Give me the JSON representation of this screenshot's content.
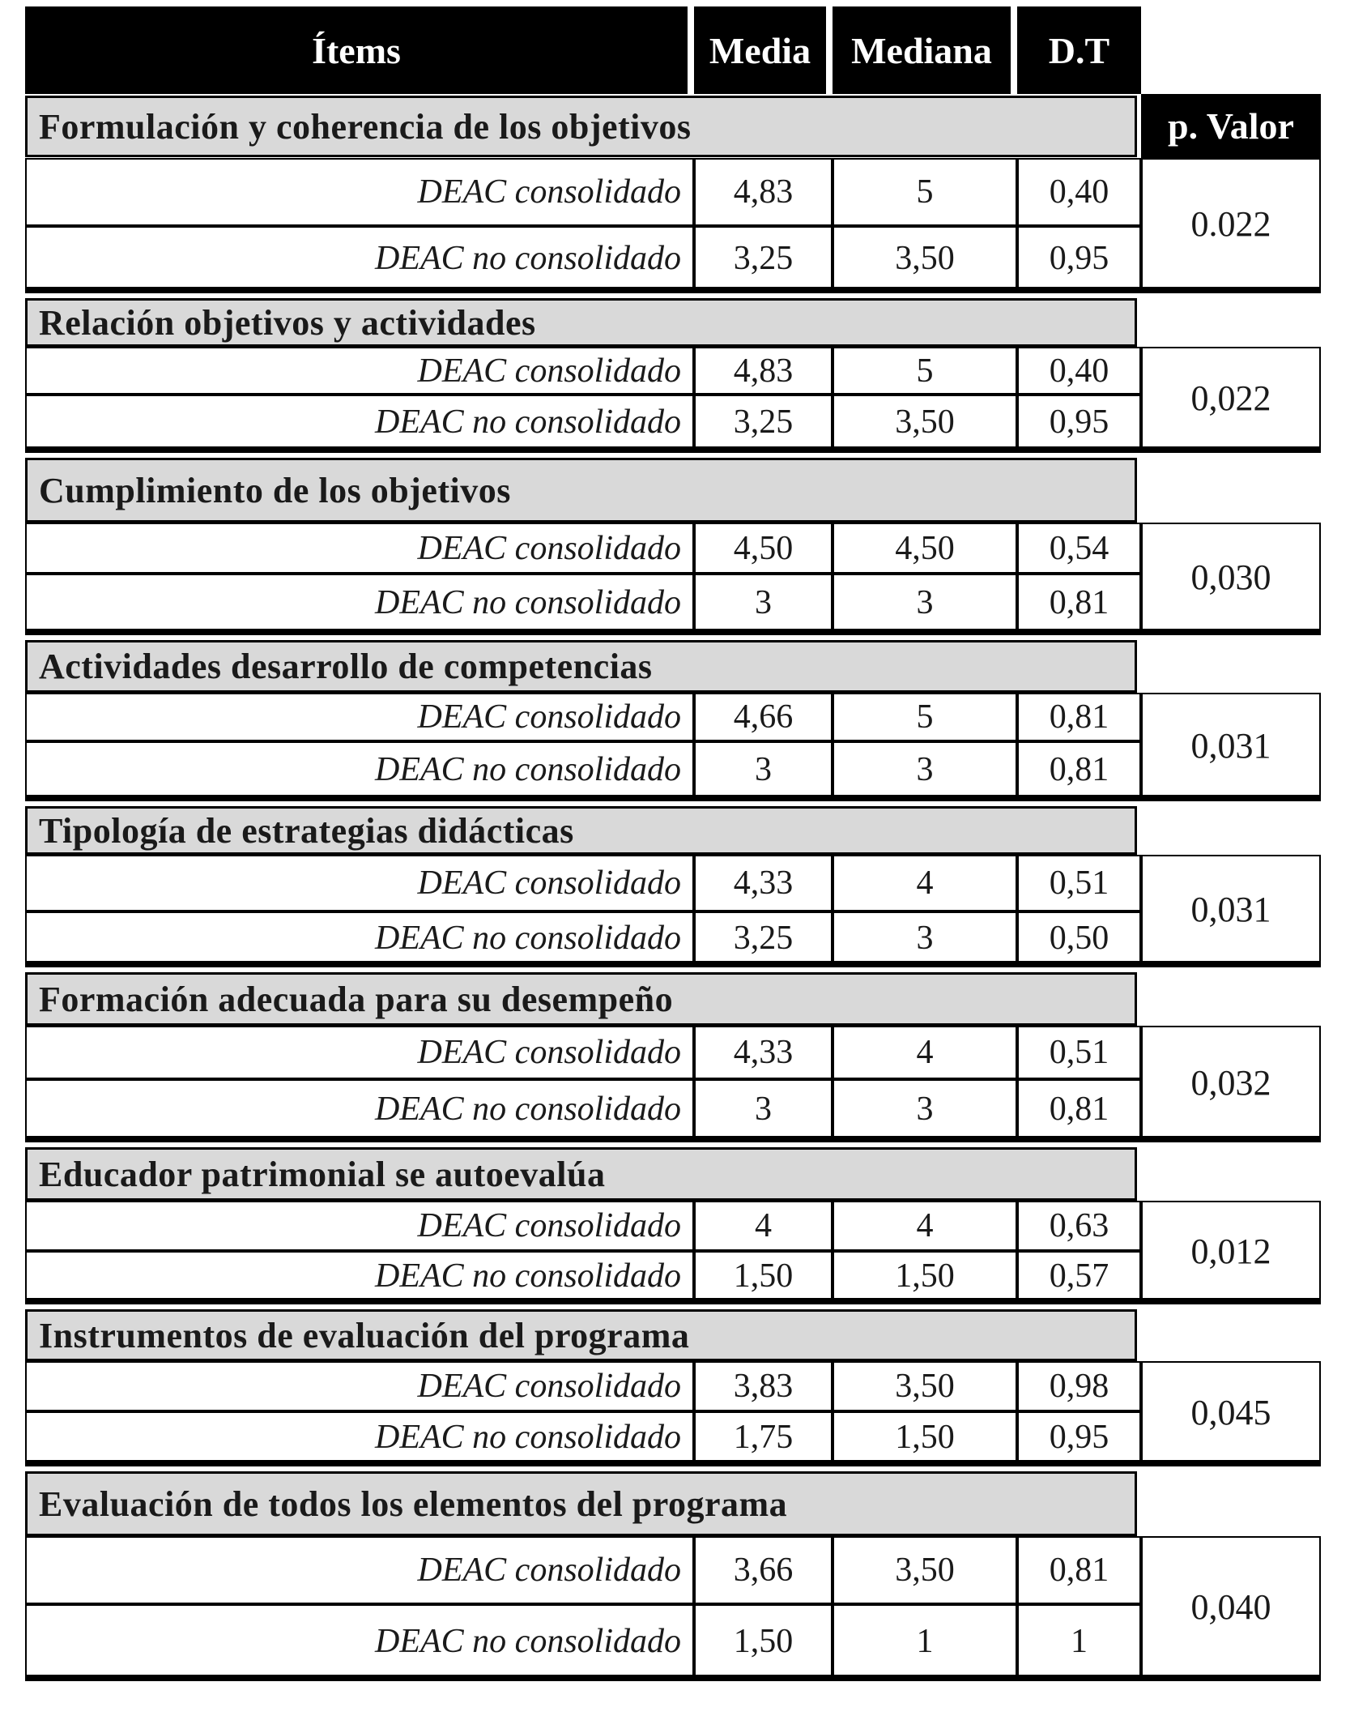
{
  "table": {
    "headers": {
      "items": "Ítems",
      "media": "Media",
      "mediana": "Mediana",
      "dt": "D.T",
      "pvalor": "p. Valor"
    },
    "rows": [
      {
        "item": "Formulación y coherencia de los objetivos",
        "groups": [
          {
            "label": "DEAC consolidado",
            "media": "4,83",
            "mediana": "5",
            "dt": "0,40"
          },
          {
            "label": "DEAC no consolidado",
            "media": "3,25",
            "mediana": "3,50",
            "dt": "0,95"
          }
        ],
        "p": "0.022"
      },
      {
        "item": "Relación objetivos y actividades",
        "groups": [
          {
            "label": "DEAC consolidado",
            "media": "4,83",
            "mediana": "5",
            "dt": "0,40"
          },
          {
            "label": "DEAC no consolidado",
            "media": "3,25",
            "mediana": "3,50",
            "dt": "0,95"
          }
        ],
        "p": "0,022"
      },
      {
        "item": "Cumplimiento de los objetivos",
        "groups": [
          {
            "label": "DEAC consolidado",
            "media": "4,50",
            "mediana": "4,50",
            "dt": "0,54"
          },
          {
            "label": "DEAC no consolidado",
            "media": "3",
            "mediana": "3",
            "dt": "0,81"
          }
        ],
        "p": "0,030"
      },
      {
        "item": "Actividades desarrollo de competencias",
        "groups": [
          {
            "label": "DEAC consolidado",
            "media": "4,66",
            "mediana": "5",
            "dt": "0,81"
          },
          {
            "label": "DEAC no consolidado",
            "media": "3",
            "mediana": "3",
            "dt": "0,81"
          }
        ],
        "p": "0,031"
      },
      {
        "item": "Tipología de estrategias didácticas",
        "groups": [
          {
            "label": "DEAC consolidado",
            "media": "4,33",
            "mediana": "4",
            "dt": "0,51"
          },
          {
            "label": "DEAC no consolidado",
            "media": "3,25",
            "mediana": "3",
            "dt": "0,50"
          }
        ],
        "p": "0,031"
      },
      {
        "item": "Formación adecuada para su desempeño",
        "groups": [
          {
            "label": "DEAC consolidado",
            "media": "4,33",
            "mediana": "4",
            "dt": "0,51"
          },
          {
            "label": "DEAC no consolidado",
            "media": "3",
            "mediana": "3",
            "dt": "0,81"
          }
        ],
        "p": "0,032"
      },
      {
        "item": "Educador patrimonial se autoevalúa",
        "groups": [
          {
            "label": "DEAC consolidado",
            "media": "4",
            "mediana": "4",
            "dt": "0,63"
          },
          {
            "label": "DEAC no consolidado",
            "media": "1,50",
            "mediana": "1,50",
            "dt": "0,57"
          }
        ],
        "p": "0,012"
      },
      {
        "item": "Instrumentos de evaluación del programa",
        "groups": [
          {
            "label": "DEAC consolidado",
            "media": "3,83",
            "mediana": "3,50",
            "dt": "0,98"
          },
          {
            "label": "DEAC no consolidado",
            "media": "1,75",
            "mediana": "1,50",
            "dt": "0,95"
          }
        ],
        "p": "0,045"
      },
      {
        "item": "Evaluación de todos los elementos del programa",
        "groups": [
          {
            "label": "DEAC consolidado",
            "media": "3,66",
            "mediana": "3,50",
            "dt": "0,81"
          },
          {
            "label": "DEAC no consolidado",
            "media": "1,50",
            "mediana": "1",
            "dt": "1"
          }
        ],
        "p": "0,040"
      }
    ]
  }
}
